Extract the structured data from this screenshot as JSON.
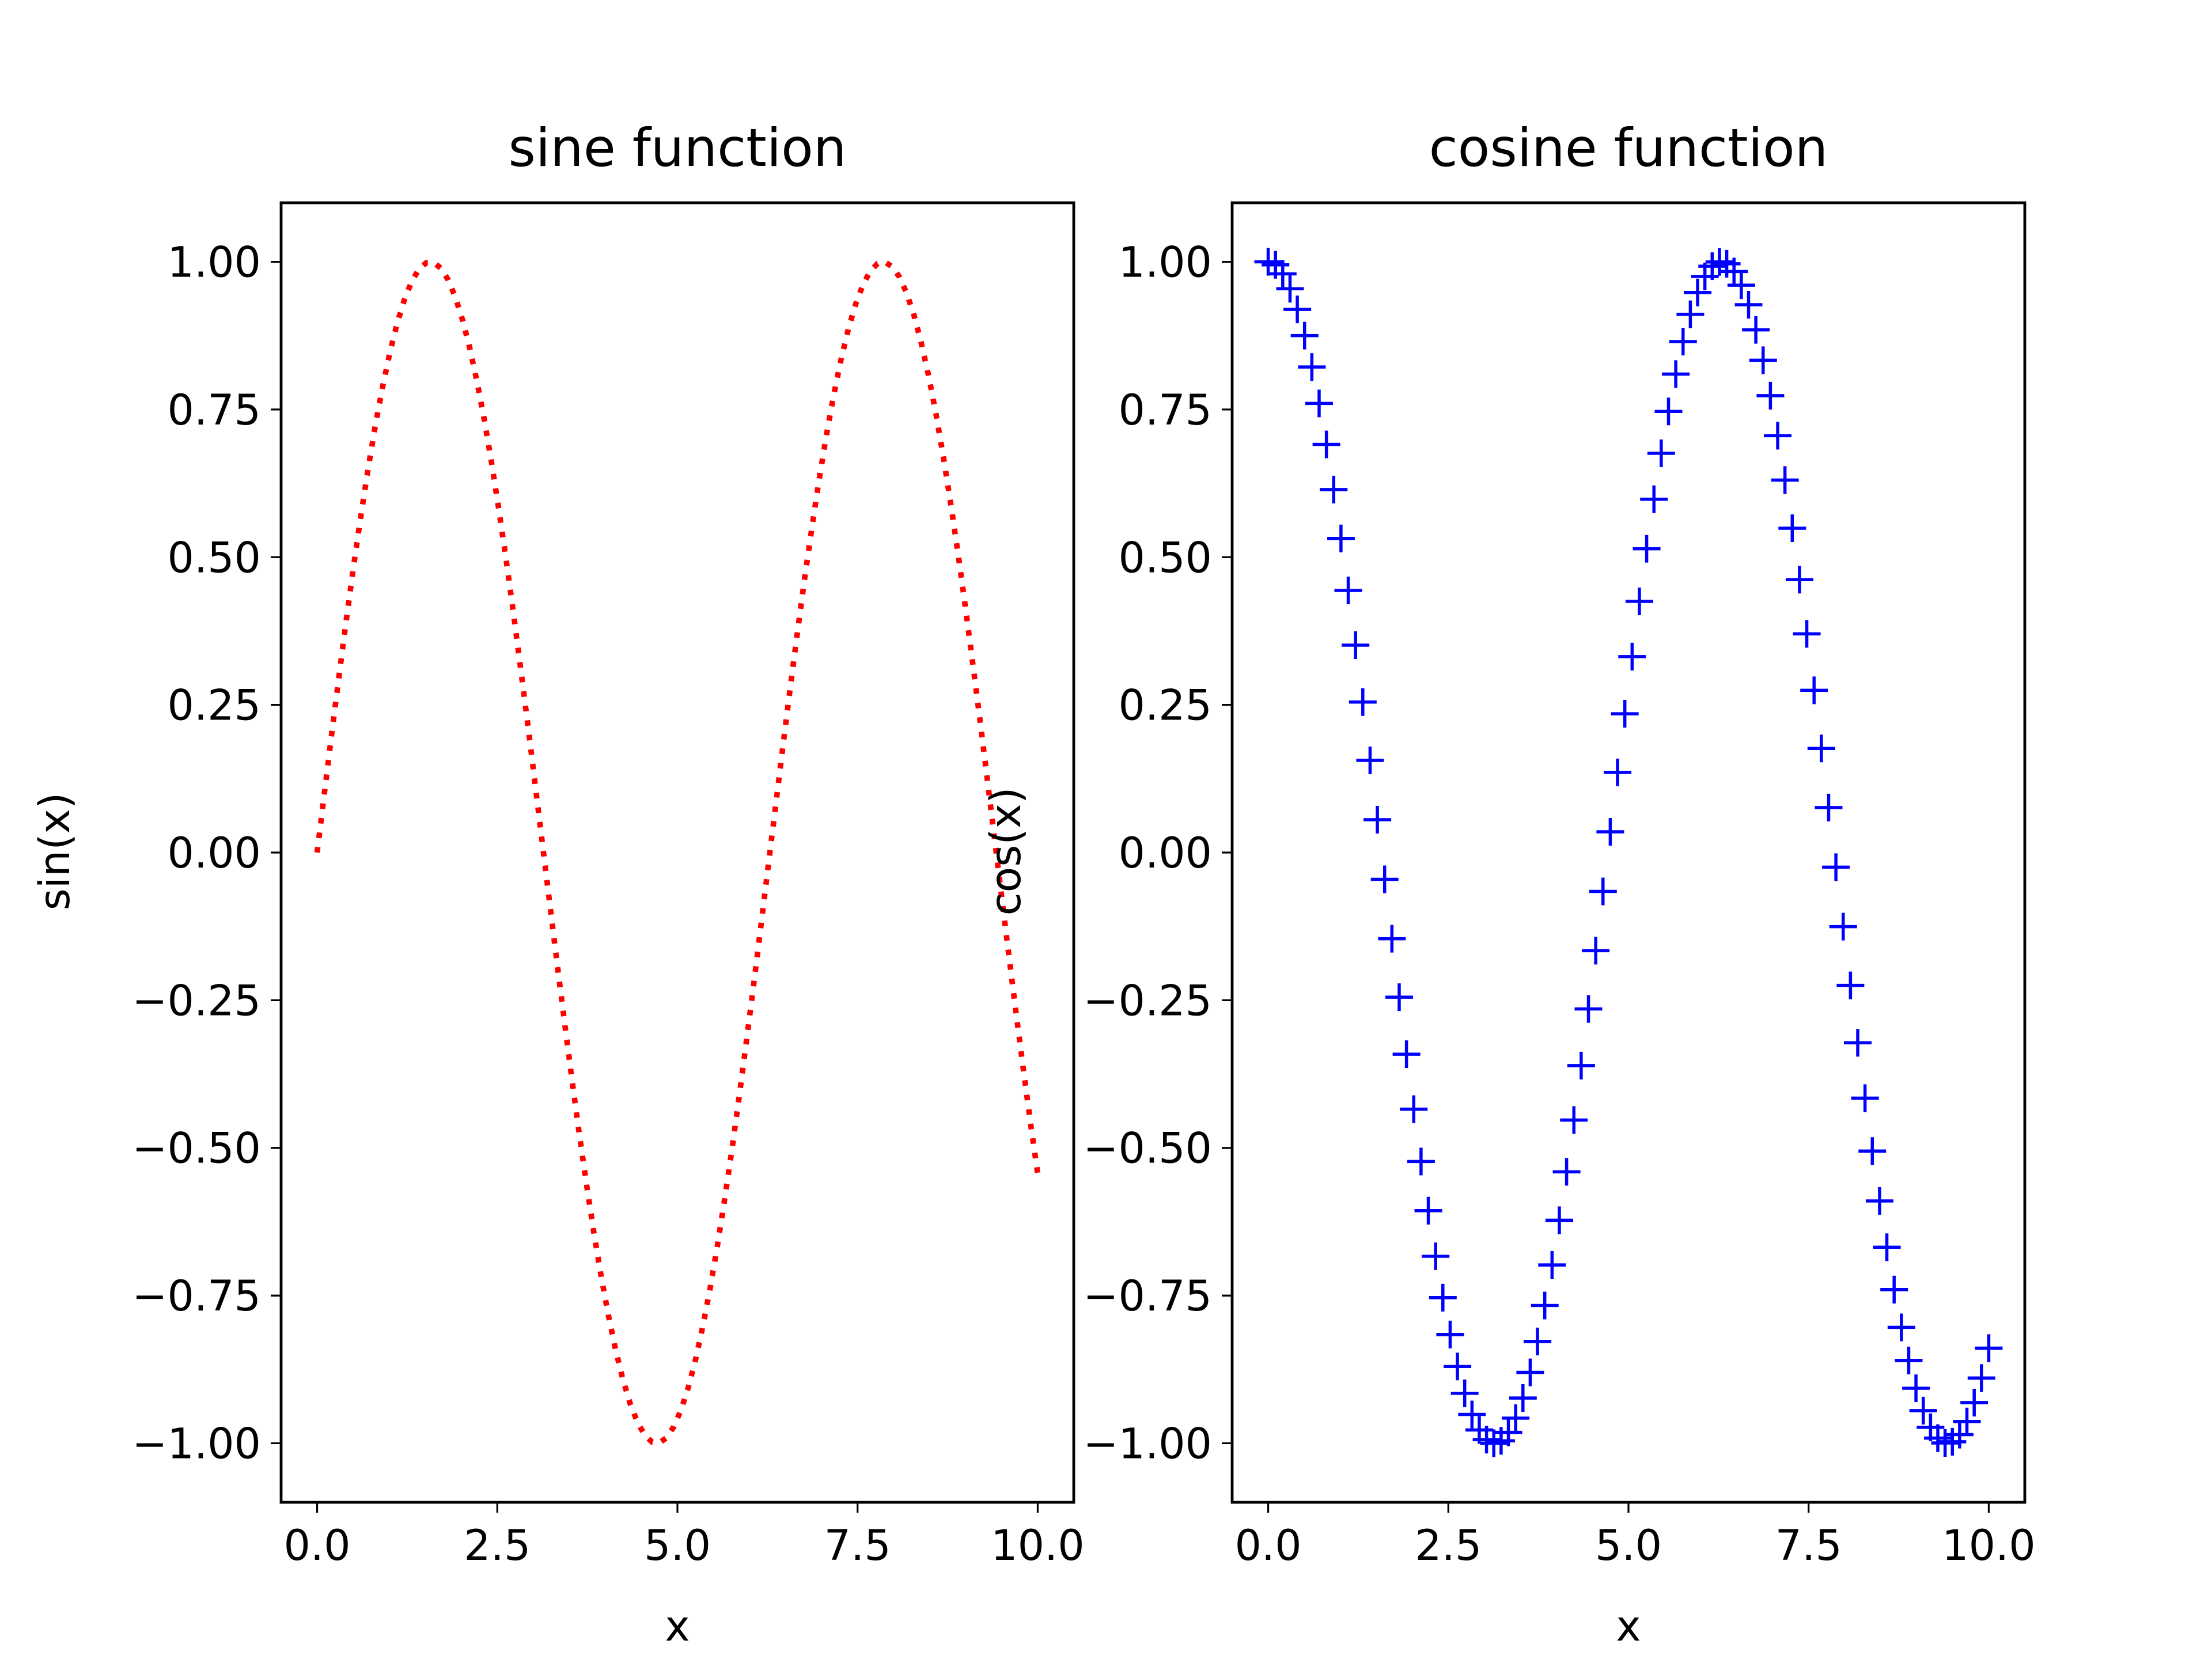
{
  "chart_data": [
    {
      "type": "line",
      "title": "sine function",
      "xlabel": "x",
      "ylabel": "sin(x)",
      "xlim": [
        -0.5,
        10.5
      ],
      "ylim": [
        -1.1,
        1.1
      ],
      "xticks": [
        0.0,
        2.5,
        5.0,
        7.5,
        10.0
      ],
      "xtick_labels": [
        "0.0",
        "2.5",
        "5.0",
        "7.5",
        "10.0"
      ],
      "yticks": [
        1.0,
        0.75,
        0.5,
        0.25,
        0.0,
        -0.25,
        -0.5,
        -0.75,
        -1.0
      ],
      "ytick_labels": [
        "1.00",
        "0.75",
        "0.50",
        "0.25",
        "0.00",
        "−0.25",
        "−0.50",
        "−0.75",
        "−1.00"
      ],
      "grid": false,
      "series": [
        {
          "function": "sin",
          "line_style": "dotted",
          "marker": "none",
          "color": "#ff0000",
          "x_range": [
            0.0,
            10.0
          ],
          "num_points": 100
        }
      ]
    },
    {
      "type": "scatter",
      "title": "cosine function",
      "xlabel": "x",
      "ylabel": "cos(x)",
      "xlim": [
        -0.5,
        10.5
      ],
      "ylim": [
        -1.1,
        1.1
      ],
      "xticks": [
        0.0,
        2.5,
        5.0,
        7.5,
        10.0
      ],
      "xtick_labels": [
        "0.0",
        "2.5",
        "5.0",
        "7.5",
        "10.0"
      ],
      "yticks": [
        1.0,
        0.75,
        0.5,
        0.25,
        0.0,
        -0.25,
        -0.5,
        -0.75,
        -1.0
      ],
      "ytick_labels": [
        "1.00",
        "0.75",
        "0.50",
        "0.25",
        "0.00",
        "−0.25",
        "−0.50",
        "−0.75",
        "−1.00"
      ],
      "grid": false,
      "series": [
        {
          "function": "cos",
          "line_style": "none",
          "marker": "+",
          "color": "#0000ff",
          "x_range": [
            0.0,
            10.0
          ],
          "num_points": 100
        }
      ]
    }
  ]
}
